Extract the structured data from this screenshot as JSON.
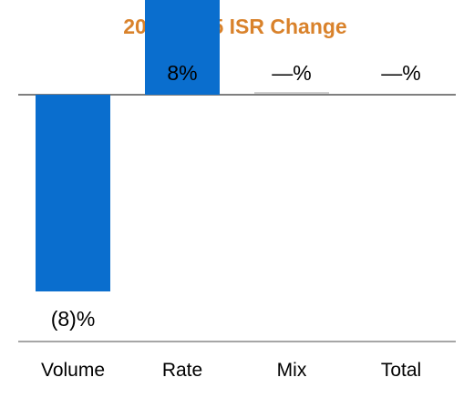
{
  "chart_data": {
    "type": "bar",
    "title": "2024-2025 ISR Change",
    "categories": [
      "Volume",
      "Rate",
      "Mix",
      "Total"
    ],
    "values": [
      -8,
      8,
      0,
      0
    ],
    "data_labels": [
      "(8)%",
      "8%",
      "—%",
      "—%"
    ],
    "ylim": [
      -8,
      0
    ],
    "grid": false,
    "legend": "none",
    "bar_color": "#0A6ECE",
    "title_color": "#D9822B"
  }
}
